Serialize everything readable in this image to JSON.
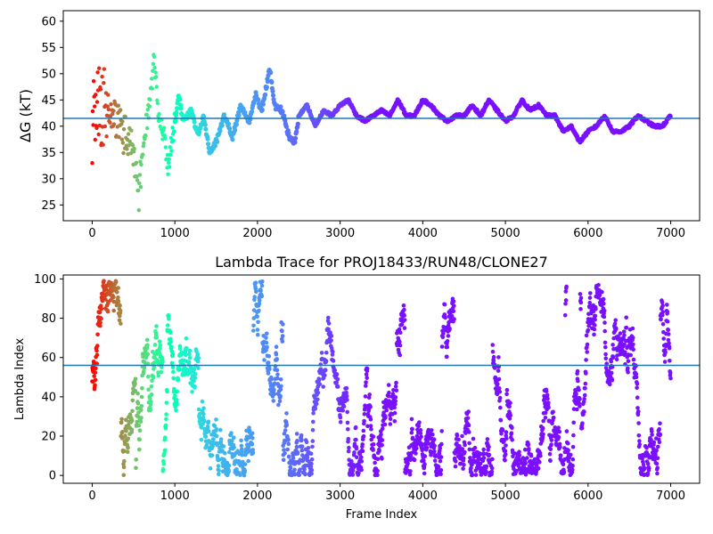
{
  "chart_data": [
    {
      "type": "scatter",
      "title": "",
      "xlabel": "",
      "ylabel": "ΔG (kT)",
      "xlim": [
        -350,
        7350
      ],
      "ylim": [
        22,
        62
      ],
      "xticks": [
        "0",
        "1000",
        "2000",
        "3000",
        "4000",
        "5000",
        "6000",
        "7000"
      ],
      "yticks": [
        "25",
        "30",
        "35",
        "40",
        "45",
        "50",
        "55",
        "60"
      ],
      "reference_line": 41.5,
      "reference_color": "#1f77b4",
      "colormap": "rainbow",
      "color_encoding": "frame index (early frames red, late frames violet)",
      "x_range": [
        0,
        7000
      ],
      "trace_key_points": [
        [
          0,
          40
        ],
        [
          50,
          45
        ],
        [
          100,
          44
        ],
        [
          200,
          42
        ],
        [
          300,
          41
        ],
        [
          400,
          38
        ],
        [
          500,
          36
        ],
        [
          560,
          26
        ],
        [
          620,
          38
        ],
        [
          700,
          44
        ],
        [
          750,
          53
        ],
        [
          800,
          43
        ],
        [
          870,
          38
        ],
        [
          920,
          32
        ],
        [
          1000,
          41
        ],
        [
          1050,
          46
        ],
        [
          1100,
          41
        ],
        [
          1200,
          43
        ],
        [
          1280,
          38
        ],
        [
          1350,
          42
        ],
        [
          1420,
          35
        ],
        [
          1500,
          37
        ],
        [
          1600,
          42
        ],
        [
          1700,
          38
        ],
        [
          1800,
          44
        ],
        [
          1900,
          41
        ],
        [
          1980,
          46
        ],
        [
          2050,
          43
        ],
        [
          2150,
          51
        ],
        [
          2200,
          44
        ],
        [
          2300,
          43
        ],
        [
          2380,
          38
        ],
        [
          2450,
          37
        ],
        [
          2500,
          42
        ],
        [
          2600,
          44
        ],
        [
          2700,
          40
        ],
        [
          2800,
          43
        ],
        [
          2900,
          42
        ],
        [
          3000,
          44
        ],
        [
          3100,
          45
        ],
        [
          3200,
          42
        ],
        [
          3300,
          41
        ],
        [
          3400,
          42
        ],
        [
          3500,
          43
        ],
        [
          3600,
          42
        ],
        [
          3700,
          45
        ],
        [
          3800,
          42
        ],
        [
          3900,
          42
        ],
        [
          4000,
          45
        ],
        [
          4100,
          44
        ],
        [
          4200,
          42
        ],
        [
          4300,
          41
        ],
        [
          4400,
          42
        ],
        [
          4500,
          42
        ],
        [
          4600,
          44
        ],
        [
          4700,
          42
        ],
        [
          4800,
          45
        ],
        [
          4900,
          43
        ],
        [
          5000,
          41
        ],
        [
          5100,
          42
        ],
        [
          5200,
          45
        ],
        [
          5300,
          43
        ],
        [
          5400,
          44
        ],
        [
          5500,
          42
        ],
        [
          5600,
          42
        ],
        [
          5700,
          39
        ],
        [
          5800,
          40
        ],
        [
          5900,
          37
        ],
        [
          6000,
          39
        ],
        [
          6100,
          40
        ],
        [
          6200,
          42
        ],
        [
          6300,
          39
        ],
        [
          6400,
          39
        ],
        [
          6500,
          40
        ],
        [
          6600,
          42
        ],
        [
          6700,
          41
        ],
        [
          6800,
          40
        ],
        [
          6900,
          40
        ],
        [
          7000,
          42
        ]
      ]
    },
    {
      "type": "scatter",
      "title": "Lambda Trace for PROJ18433/RUN48/CLONE27",
      "xlabel": "Frame Index",
      "ylabel": "Lambda Index",
      "xlim": [
        -350,
        7350
      ],
      "ylim": [
        -4,
        102
      ],
      "xticks": [
        "0",
        "1000",
        "2000",
        "3000",
        "4000",
        "5000",
        "6000",
        "7000"
      ],
      "yticks": [
        "0",
        "20",
        "40",
        "60",
        "80",
        "100"
      ],
      "reference_line": 56,
      "reference_color": "#1f77b4",
      "colormap": "rainbow",
      "color_encoding": "frame index (early frames red, late frames violet)",
      "x_range": [
        0,
        7000
      ],
      "y_range": [
        0,
        99
      ]
    }
  ]
}
